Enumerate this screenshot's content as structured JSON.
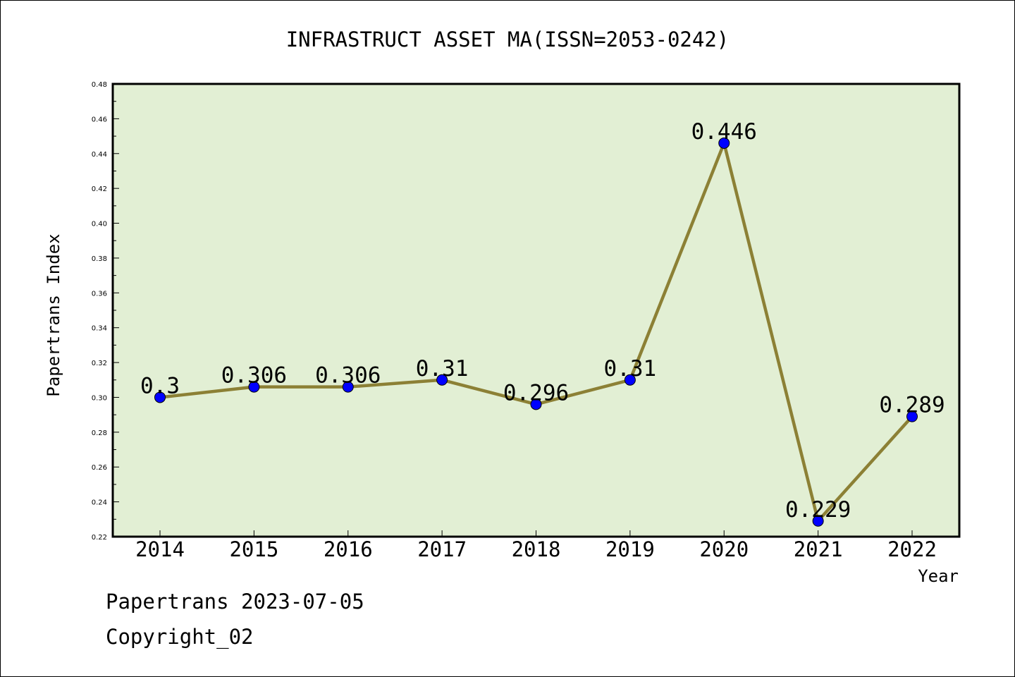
{
  "chart_data": {
    "type": "line",
    "title": "INFRASTRUCT ASSET MA(ISSN=2053-0242)",
    "xlabel": "Year",
    "ylabel": "Papertrans Index",
    "categories": [
      "2014",
      "2015",
      "2016",
      "2017",
      "2018",
      "2019",
      "2020",
      "2021",
      "2022"
    ],
    "series": [
      {
        "values": [
          0.3,
          0.306,
          0.306,
          0.31,
          0.296,
          0.31,
          0.446,
          0.229,
          0.289
        ],
        "labels": [
          "0.3",
          "0.306",
          "0.306",
          "0.31",
          "0.296",
          "0.31",
          "0.446",
          "0.229",
          "0.289"
        ]
      }
    ],
    "ylim": [
      0.22,
      0.48
    ],
    "yticks": [
      "0.22",
      "0.24",
      "0.26",
      "0.28",
      "0.30",
      "0.32",
      "0.34",
      "0.36",
      "0.38",
      "0.40",
      "0.42",
      "0.44",
      "0.46",
      "0.48"
    ],
    "grid": false,
    "colors": {
      "plot_background": "#e2efd4",
      "line": "#8c8035",
      "marker": "#0000ff"
    }
  },
  "footer": {
    "line1": "Papertrans 2023-07-05",
    "line2": "Copyright_02"
  }
}
